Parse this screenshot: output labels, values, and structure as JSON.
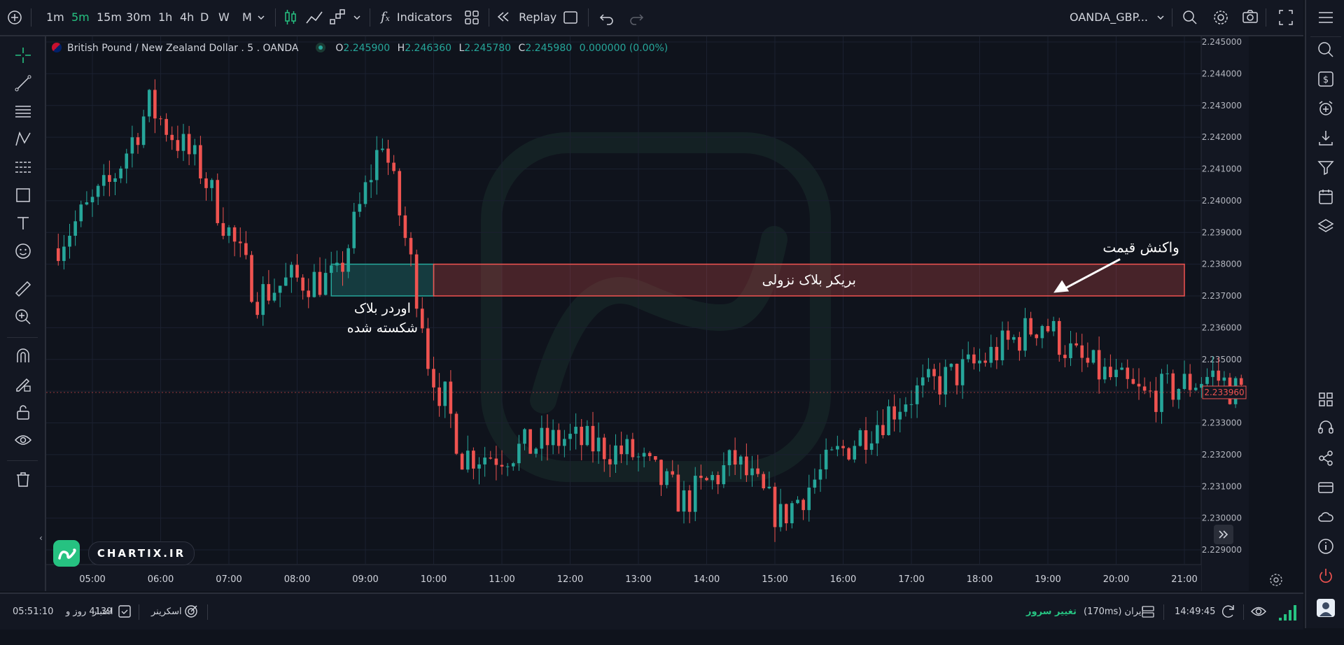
{
  "toolbar": {
    "timeframes": [
      "1m",
      "5m",
      "15m",
      "30m",
      "1h",
      "4h",
      "D",
      "W",
      "M"
    ],
    "active_timeframe": "5m",
    "indicators_label": "Indicators",
    "replay_label": "Replay",
    "symbol_label": "OANDA_GBP..."
  },
  "legend": {
    "symbol_title": "British Pound / New Zealand Dollar . 5 . OANDA",
    "open_label": "O",
    "open_value": "2.245900",
    "high_label": "H",
    "high_value": "2.246360",
    "low_label": "L",
    "low_value": "2.245780",
    "close_label": "C",
    "close_value": "2.245980",
    "change_value": "0.000000 (0.00%)"
  },
  "annotations": {
    "breaker_block": "بریکر بلاک نزولی",
    "order_block_line1": "اوردر بلاک",
    "order_block_line2": "شکسته شده",
    "price_reaction": "واکنش قیمت"
  },
  "watermark": "CHARTIX.IR",
  "bottom": {
    "clock": "05:51:10",
    "days_remaining": "4139 روز و",
    "credit_label": "اعتبار",
    "screener_label": "اسکرینر",
    "change_server_label": "تغییر سرور",
    "server_info": "ایران (170ms)",
    "time": "14:49:45"
  },
  "chart_data": {
    "type": "candlestick",
    "title": "British Pound / New Zealand Dollar . 5 . OANDA",
    "x_ticks": [
      "05:00",
      "06:00",
      "07:00",
      "08:00",
      "09:00",
      "10:00",
      "11:00",
      "12:00",
      "13:00",
      "14:00",
      "15:00",
      "16:00",
      "17:00",
      "18:00",
      "19:00",
      "20:00",
      "21:00"
    ],
    "y_ticks": [
      "2.245000",
      "2.244000",
      "2.243000",
      "2.242000",
      "2.241000",
      "2.240000",
      "2.239000",
      "2.238000",
      "2.237000",
      "2.236000",
      "2.235000",
      "2.234000",
      "2.233000",
      "2.232000",
      "2.231000",
      "2.230000",
      "2.229000"
    ],
    "ylim": [
      2.2285,
      2.2452
    ],
    "last_price": "2.233960",
    "up_color": "#26a69a",
    "down_color": "#ef5350",
    "grid": true,
    "key_points": [
      {
        "time": "04:30",
        "price": 2.2385
      },
      {
        "time": "05:20",
        "price": 2.2405
      },
      {
        "time": "05:55",
        "price": 2.243
      },
      {
        "time": "06:40",
        "price": 2.241
      },
      {
        "time": "07:30",
        "price": 2.237
      },
      {
        "time": "08:00",
        "price": 2.2375
      },
      {
        "time": "08:40",
        "price": 2.2375
      },
      {
        "time": "09:20",
        "price": 2.242
      },
      {
        "time": "09:45",
        "price": 2.238
      },
      {
        "time": "10:00",
        "price": 2.2355
      },
      {
        "time": "10:30",
        "price": 2.232
      },
      {
        "time": "11:00",
        "price": 2.232
      },
      {
        "time": "12:00",
        "price": 2.2325
      },
      {
        "time": "13:00",
        "price": 2.232
      },
      {
        "time": "13:45",
        "price": 2.2305
      },
      {
        "time": "14:30",
        "price": 2.2318
      },
      {
        "time": "15:10",
        "price": 2.23
      },
      {
        "time": "16:00",
        "price": 2.232
      },
      {
        "time": "17:00",
        "price": 2.2338
      },
      {
        "time": "18:00",
        "price": 2.2348
      },
      {
        "time": "19:00",
        "price": 2.2362
      },
      {
        "time": "19:30",
        "price": 2.235
      },
      {
        "time": "20:30",
        "price": 2.2338
      },
      {
        "time": "21:30",
        "price": 2.2345
      },
      {
        "time": "21:50",
        "price": 2.234
      }
    ],
    "zones": [
      {
        "name": "order-block",
        "time_start": "08:30",
        "time_end": "10:00",
        "price_low": 2.237,
        "price_high": 2.238,
        "color": "#26a69a"
      },
      {
        "name": "breaker-block",
        "time_start": "10:00",
        "time_end": "21:00",
        "price_low": 2.237,
        "price_high": 2.238,
        "color": "#ef5350"
      }
    ]
  }
}
